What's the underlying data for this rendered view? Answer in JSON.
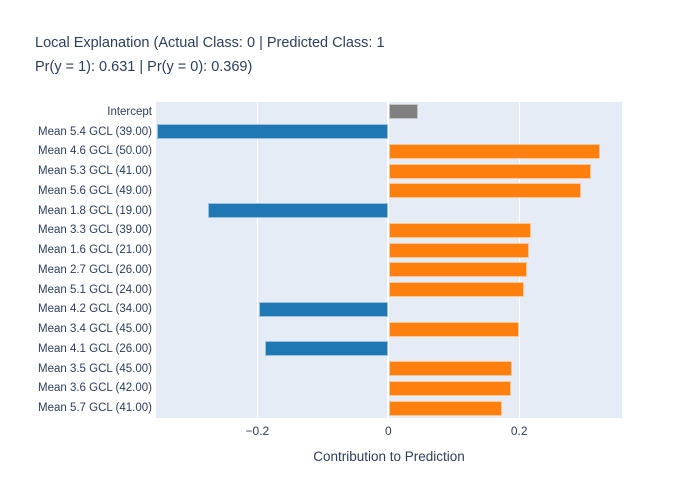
{
  "title": {
    "line1": "Local Explanation (Actual Class: 0 | Predicted Class: 1",
    "line2": "Pr(y = 1): 0.631 | Pr(y = 0): 0.369)"
  },
  "chart_data": {
    "type": "bar",
    "orientation": "horizontal",
    "title": "Local Explanation (Actual Class: 0 | Predicted Class: 1 Pr(y = 1): 0.631 | Pr(y = 0): 0.369)",
    "xlabel": "Contribution to Prediction",
    "ylabel": "",
    "categories": [
      "Intercept",
      "Mean 5.4 GCL (39.00)",
      "Mean 4.6 GCL (50.00)",
      "Mean 5.3 GCL (41.00)",
      "Mean 5.6 GCL (49.00)",
      "Mean 1.8 GCL (19.00)",
      "Mean 3.3 GCL (39.00)",
      "Mean 1.6 GCL (21.00)",
      "Mean 2.7 GCL (26.00)",
      "Mean 5.1 GCL (24.00)",
      "Mean 4.2 GCL (34.00)",
      "Mean 3.4 GCL (45.00)",
      "Mean 4.1 GCL (26.00)",
      "Mean 3.5 GCL (45.00)",
      "Mean 3.6 GCL (42.00)",
      "Mean 5.7 GCL (41.00)"
    ],
    "values": [
      0.044,
      -0.354,
      0.322,
      0.308,
      0.293,
      -0.276,
      0.217,
      0.214,
      0.21,
      0.206,
      -0.198,
      0.198,
      -0.188,
      0.187,
      0.186,
      0.173
    ],
    "xlim": [
      -0.355,
      0.357
    ],
    "xticks": [
      -0.2,
      0,
      0.2
    ],
    "xtick_labels": [
      "−0.2",
      "0",
      "0.2"
    ],
    "grid": true,
    "legend": false,
    "colors": {
      "positive": "#ff7f0e",
      "negative": "#1f77b4",
      "intercept": "#7f7f7f",
      "plot_bg": "#e5ecf6",
      "grid": "#ffffff",
      "text": "#2a3f5f"
    }
  }
}
